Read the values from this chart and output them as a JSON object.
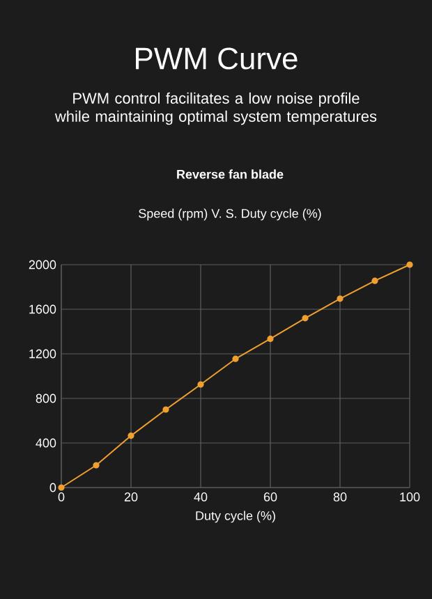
{
  "chart_data": {
    "type": "line",
    "title": "PWM Curve",
    "subtitle": "PWM control facilitates a low noise profile while maintaining optimal system temperatures",
    "annotations": [
      "Reverse fan blade",
      "Speed (rpm) V. S. Duty cycle (%)"
    ],
    "xlabel": "Duty cycle (%)",
    "x": [
      0,
      10,
      20,
      30,
      40,
      50,
      60,
      70,
      80,
      90,
      100
    ],
    "series": [
      {
        "color": "#f0a030",
        "values": [
          0,
          200,
          465,
          700,
          925,
          1155,
          1335,
          1520,
          1695,
          1855,
          2000
        ]
      }
    ],
    "xlim": [
      0,
      100
    ],
    "xticks": [
      0,
      20,
      40,
      60,
      80,
      100
    ],
    "ylim": [
      0,
      2000
    ],
    "yticks": [
      0,
      400,
      800,
      1200,
      1600,
      2000
    ],
    "grid": true,
    "marker": "circle",
    "line_style": "solid"
  }
}
